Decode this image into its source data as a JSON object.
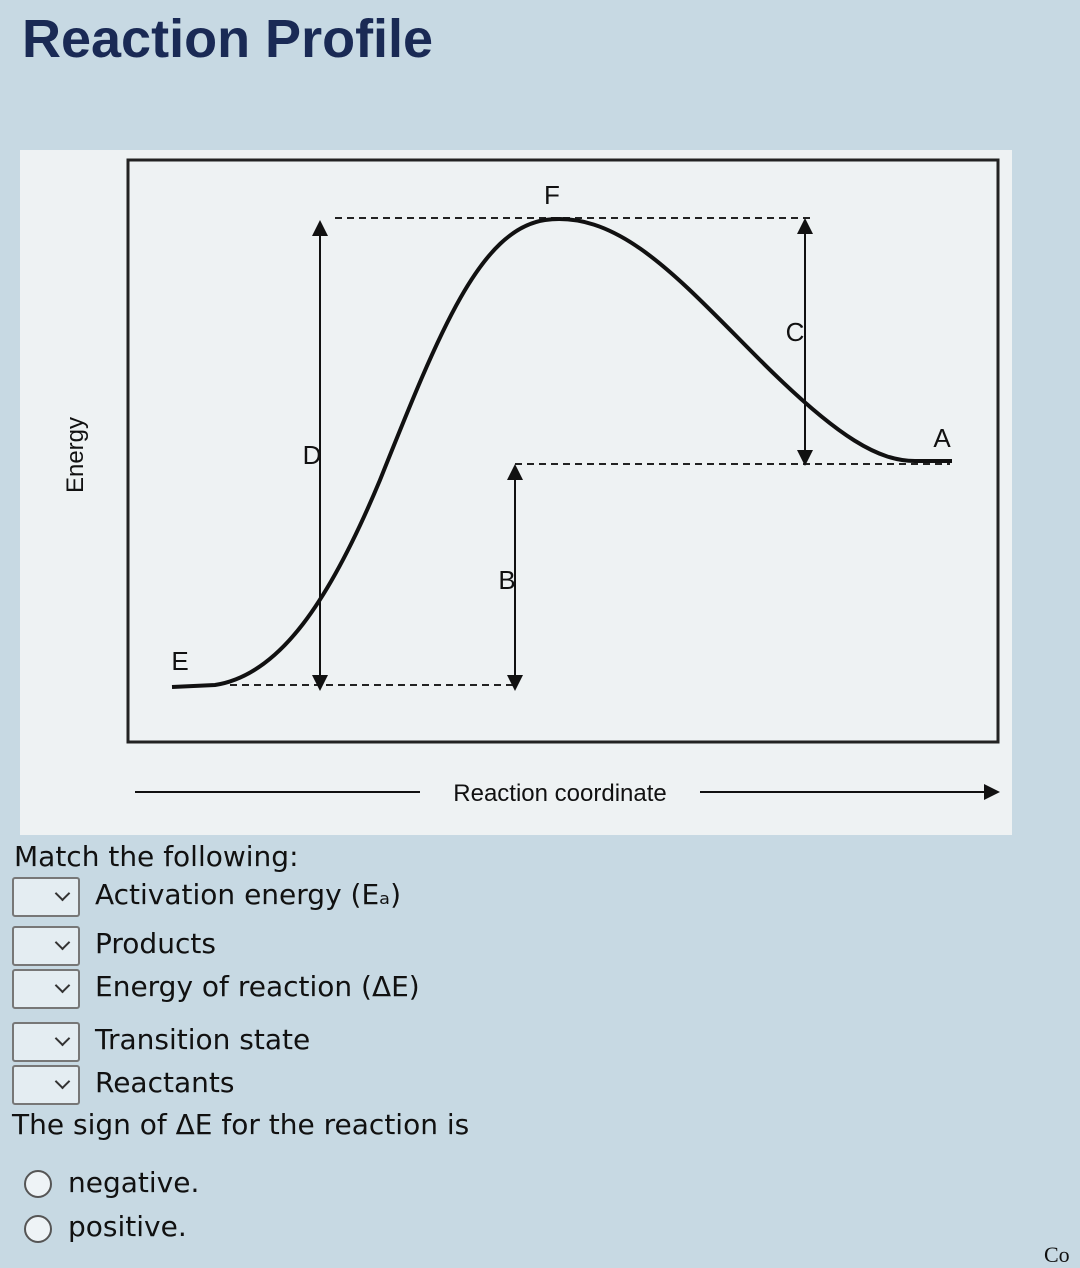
{
  "header": {
    "title": "Reaction Profile"
  },
  "diagram": {
    "y_axis_label": "Energy",
    "x_axis_label": "Reaction coordinate",
    "labels": {
      "a": "A",
      "b": "B",
      "c": "C",
      "d": "D",
      "e": "E",
      "f": "F"
    }
  },
  "match": {
    "prompt": "Match the following:",
    "items": [
      "Activation energy (Eₐ)",
      "Products",
      "Energy of reaction (ΔE)",
      "Transition state",
      "Reactants"
    ]
  },
  "sign_question": {
    "prompt": "The sign of ΔE for the reaction is",
    "options": [
      "negative.",
      "positive."
    ]
  },
  "cutoff_text": "Co"
}
